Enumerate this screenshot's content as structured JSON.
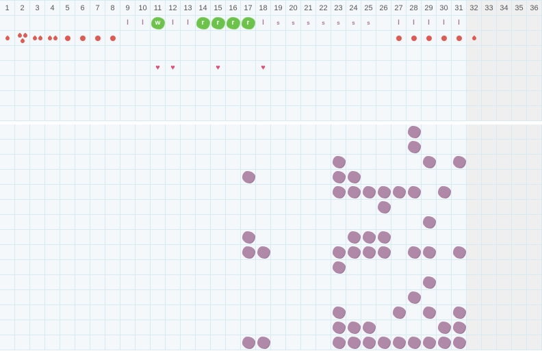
{
  "days": [
    "1",
    "2",
    "3",
    "4",
    "5",
    "6",
    "7",
    "8",
    "9",
    "10",
    "11",
    "12",
    "13",
    "14",
    "15",
    "16",
    "17",
    "18",
    "19",
    "20",
    "21",
    "22",
    "23",
    "24",
    "25",
    "26",
    "27",
    "28",
    "29",
    "30",
    "31",
    "32",
    "33",
    "34",
    "35",
    "36"
  ],
  "month_length": 31,
  "colors": {
    "grid_line": "#d6eaf4",
    "cell_bg": "#f4f8fa",
    "out_of_month_bg": "#efefef",
    "flow": "#e05a52",
    "heart": "#e0507a",
    "green_mark": "#6cc24a",
    "purple_mark": "#b088a8",
    "letter_mark": "#a87898"
  },
  "top_rows": [
    {
      "type": "letters",
      "marks": {
        "9": "l",
        "10": "l",
        "11": "w",
        "12": "l",
        "13": "l",
        "14": "r",
        "15": "r",
        "16": "r",
        "17": "r",
        "18": "l",
        "19": "s",
        "20": "s",
        "21": "s",
        "22": "s",
        "23": "s",
        "24": "s",
        "25": "s",
        "27": "l",
        "28": "l",
        "29": "l",
        "30": "l",
        "31": "l"
      },
      "highlighted": [
        "11",
        "14",
        "15",
        "16",
        "17"
      ]
    },
    {
      "type": "flow",
      "marks": {
        "1": "drop-1",
        "2": "drop-3",
        "3": "drop-2",
        "4": "drop-2",
        "5": "dot",
        "6": "dot",
        "7": "dot",
        "8": "dot",
        "27": "dot",
        "28": "dot",
        "29": "dot",
        "30": "dot",
        "31": "dot",
        "32": "drop-1"
      }
    },
    {
      "type": "empty"
    },
    {
      "type": "hearts",
      "icon": "heart-icon",
      "days": [
        "11",
        "12",
        "15",
        "18"
      ]
    },
    {
      "type": "empty"
    },
    {
      "type": "empty"
    },
    {
      "type": "empty"
    }
  ],
  "bottom_rows": [
    [
      28
    ],
    [
      28
    ],
    [
      23,
      29,
      31
    ],
    [
      17,
      23,
      24
    ],
    [
      23,
      24,
      25,
      26,
      27,
      28,
      30
    ],
    [
      26
    ],
    [
      29
    ],
    [
      17,
      24,
      25,
      26
    ],
    [
      17,
      18,
      23,
      24,
      25,
      26,
      28,
      29,
      31
    ],
    [
      23
    ],
    [
      29
    ],
    [
      28
    ],
    [
      23,
      27,
      29,
      31
    ],
    [
      23,
      24,
      25,
      30,
      31
    ],
    [
      17,
      18,
      23,
      24,
      25,
      26,
      27,
      28,
      29,
      30,
      31
    ]
  ]
}
